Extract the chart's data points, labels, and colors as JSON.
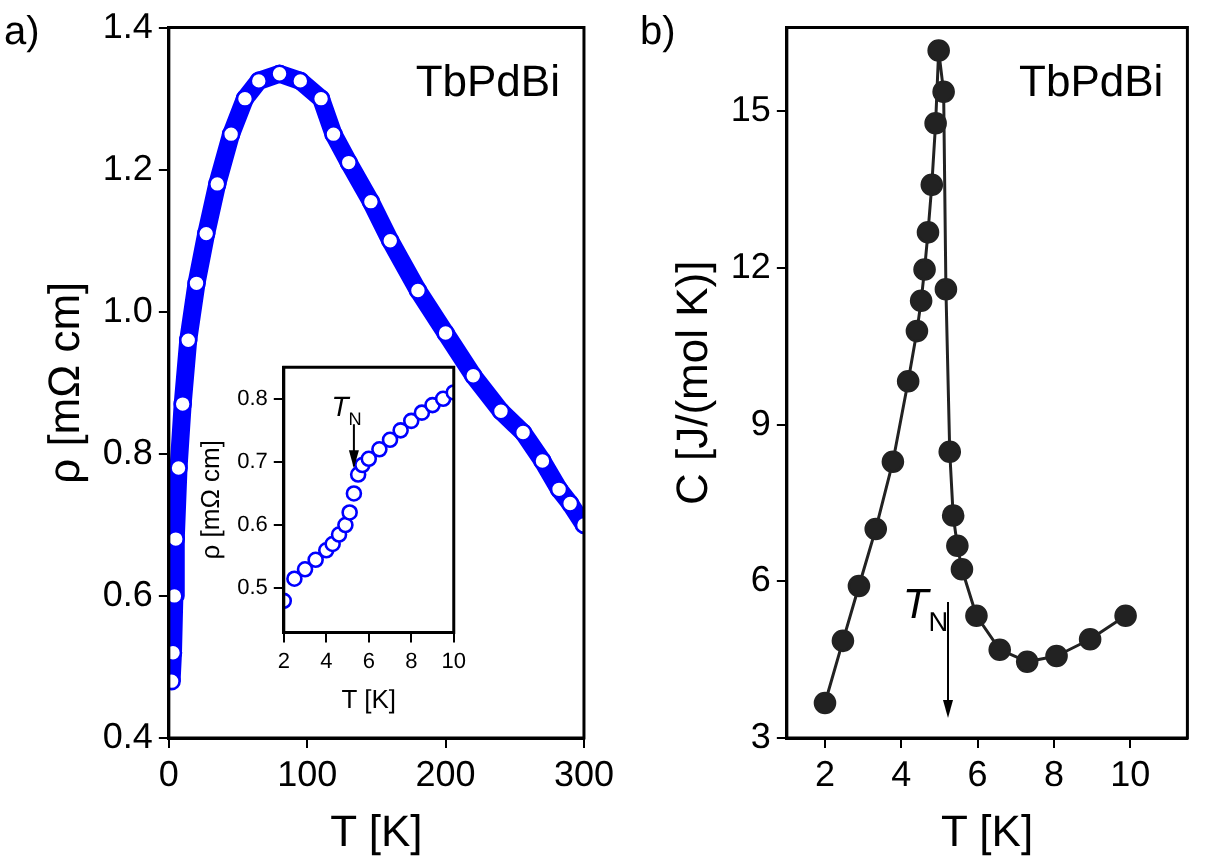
{
  "chart_data": [
    {
      "type": "line",
      "xlabel": "T [K]",
      "ylabel": "ρ [mΩ cm]",
      "annotations": [
        "a)",
        "TbPdBi"
      ],
      "marker": "circle",
      "grid": false,
      "legend": false,
      "xlim": [
        0,
        300
      ],
      "xticks": [
        0,
        100,
        200,
        300
      ],
      "ylim": [
        0.4,
        1.4
      ],
      "yticks": [
        0.4,
        0.6,
        0.8,
        {
          "value": 1.0,
          "label": "1.0"
        },
        1.2,
        1.4
      ],
      "series": [
        {
          "color": "#0000ff",
          "x": [
            2,
            3,
            4,
            5,
            7,
            10,
            14,
            20,
            27,
            35,
            45,
            55,
            65,
            80,
            95,
            110,
            119,
            130,
            146,
            160,
            180,
            200,
            220,
            240,
            256,
            270,
            282,
            290,
            300
          ],
          "values": [
            0.48,
            0.52,
            0.6,
            0.68,
            0.78,
            0.87,
            0.96,
            1.04,
            1.11,
            1.18,
            1.25,
            1.3,
            1.325,
            1.335,
            1.325,
            1.3,
            1.25,
            1.21,
            1.155,
            1.1,
            1.03,
            0.97,
            0.91,
            0.86,
            0.83,
            0.79,
            0.75,
            0.73,
            0.7
          ]
        }
      ]
    },
    {
      "type": "scatter",
      "xlabel": "T [K]",
      "ylabel": "ρ [mΩ cm]",
      "annotations": [
        {
          "text": "T$_{N}$",
          "x": 5.3,
          "y": 0.69
        }
      ],
      "marker": "circle",
      "grid": false,
      "legend": false,
      "xlim": [
        2,
        10
      ],
      "xticks": [
        2,
        4,
        6,
        8,
        10
      ],
      "ylim": [
        0.43,
        0.85
      ],
      "yticks": [
        0.5,
        0.6,
        0.7,
        0.8
      ],
      "series": [
        {
          "color": "#0000ff",
          "x": [
            2,
            2.5,
            3,
            3.5,
            4,
            4.3,
            4.6,
            4.9,
            5.1,
            5.3,
            5.5,
            5.7,
            6,
            6.5,
            7,
            7.5,
            8,
            8.5,
            9,
            9.5,
            10
          ],
          "values": [
            0.48,
            0.515,
            0.53,
            0.545,
            0.56,
            0.57,
            0.585,
            0.6,
            0.62,
            0.65,
            0.68,
            0.695,
            0.705,
            0.72,
            0.735,
            0.75,
            0.765,
            0.778,
            0.79,
            0.8,
            0.81
          ]
        }
      ]
    },
    {
      "type": "line",
      "xlabel": "T [K]",
      "ylabel": "C [J/(mol K)]",
      "annotations": [
        "b)",
        "TbPdBi"
      ],
      "ref_lines": [
        {
          "axis": "x",
          "value": 5.25,
          "label": "T$_{N}$"
        }
      ],
      "marker": "circle",
      "grid": false,
      "legend": false,
      "xlim": [
        1,
        11.5
      ],
      "xticks": [
        2,
        4,
        6,
        8,
        10
      ],
      "ylim": [
        3,
        16.6
      ],
      "yticks": [
        3,
        6,
        9,
        12,
        15
      ],
      "series": [
        {
          "color": "#222222",
          "x": [
            2.0,
            2.47,
            2.89,
            3.33,
            3.78,
            4.18,
            4.41,
            4.52,
            4.61,
            4.7,
            4.8,
            4.9,
            4.98,
            5.11,
            5.17,
            5.27,
            5.36,
            5.47,
            5.59,
            5.97,
            6.58,
            7.3,
            8.07,
            8.95,
            9.88
          ],
          "values": [
            3.67,
            4.86,
            5.91,
            7.0,
            8.29,
            9.83,
            10.79,
            11.37,
            11.97,
            12.68,
            13.59,
            14.77,
            16.16,
            15.37,
            11.59,
            8.48,
            7.26,
            6.68,
            6.23,
            5.34,
            4.69,
            4.46,
            4.57,
            4.89,
            5.34
          ]
        }
      ]
    }
  ]
}
